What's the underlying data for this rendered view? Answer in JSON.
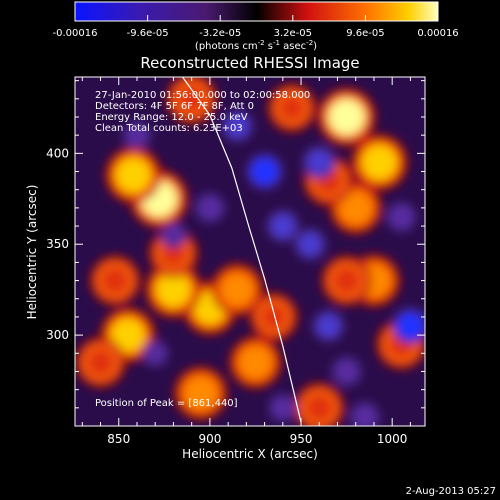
{
  "colorbar": {
    "tick_labels": [
      "-0.00016",
      "-9.6e-05",
      "-3.2e-05",
      "3.2e-05",
      "9.6e-05",
      "0.00016"
    ],
    "units_text": "(photons cm",
    "units_sup1": "-2",
    "units_s": " s",
    "units_sup2": "-1",
    "units_asec": " asec",
    "units_sup3": "-2",
    "units_close": ")",
    "range": [
      -0.00016,
      0.00016
    ]
  },
  "annotations": {
    "time": "27-Jan-2010 01:56:00.000 to 02:00:58.000",
    "detectors": "Detectors: 4F 5F 6F 7F 8F, Att 0",
    "energy": "Energy Range: 12.0 - 25.0 keV",
    "clean": "Clean     Total counts: 6.23E+03",
    "peak": "Position of Peak = [861,440]"
  },
  "footer_date": "2-Aug-2013 05:27",
  "chart_data": {
    "type": "heatmap",
    "title": "Reconstructed RHESSI Image",
    "xlabel": "Heliocentric X (arcsec)",
    "ylabel": "Heliocentric Y (arcsec)",
    "xlim": [
      826,
      1018
    ],
    "ylim": [
      250,
      442
    ],
    "xticks": [
      850,
      900,
      950,
      1000
    ],
    "yticks": [
      300,
      350,
      400
    ],
    "peak": [
      861,
      440
    ],
    "limb_curve": [
      [
        885,
        442
      ],
      [
        900,
        421
      ],
      [
        912,
        392
      ],
      [
        921,
        361
      ],
      [
        930,
        331
      ],
      [
        940,
        294
      ],
      [
        950,
        252
      ]
    ],
    "colorscale": [
      "#0a14ff",
      "#3a1ab0",
      "#4a1a70",
      "#000000",
      "#d01010",
      "#ff7000",
      "#ffd000",
      "#ffffc0"
    ],
    "hot_spots": [
      {
        "x": 872,
        "y": 375,
        "v": 1.0
      },
      {
        "x": 858,
        "y": 388,
        "v": 0.9
      },
      {
        "x": 975,
        "y": 420,
        "v": 1.0
      },
      {
        "x": 993,
        "y": 395,
        "v": 0.9
      },
      {
        "x": 980,
        "y": 370,
        "v": 0.7
      },
      {
        "x": 965,
        "y": 385,
        "v": 0.6
      },
      {
        "x": 900,
        "y": 315,
        "v": 0.8
      },
      {
        "x": 880,
        "y": 325,
        "v": 0.9
      },
      {
        "x": 915,
        "y": 325,
        "v": 0.7
      },
      {
        "x": 925,
        "y": 285,
        "v": 0.7
      },
      {
        "x": 895,
        "y": 268,
        "v": 0.75
      },
      {
        "x": 855,
        "y": 300,
        "v": 0.85
      },
      {
        "x": 840,
        "y": 285,
        "v": 0.6
      },
      {
        "x": 990,
        "y": 330,
        "v": 0.7
      },
      {
        "x": 1005,
        "y": 295,
        "v": 0.6
      },
      {
        "x": 960,
        "y": 260,
        "v": 0.6
      },
      {
        "x": 975,
        "y": 330,
        "v": 0.6
      },
      {
        "x": 880,
        "y": 345,
        "v": 0.55
      },
      {
        "x": 848,
        "y": 330,
        "v": 0.6
      },
      {
        "x": 935,
        "y": 310,
        "v": 0.5
      },
      {
        "x": 890,
        "y": 430,
        "v": 0.6
      },
      {
        "x": 945,
        "y": 425,
        "v": 0.5
      }
    ],
    "cold_spots": [
      {
        "x": 930,
        "y": 390,
        "v": -1.0
      },
      {
        "x": 915,
        "y": 415,
        "v": -0.7
      },
      {
        "x": 940,
        "y": 360,
        "v": -0.75
      },
      {
        "x": 955,
        "y": 350,
        "v": -0.7
      },
      {
        "x": 1005,
        "y": 365,
        "v": -0.6
      },
      {
        "x": 960,
        "y": 395,
        "v": -0.8
      },
      {
        "x": 1010,
        "y": 305,
        "v": -1.0
      },
      {
        "x": 900,
        "y": 370,
        "v": -0.6
      },
      {
        "x": 860,
        "y": 410,
        "v": -0.5
      },
      {
        "x": 965,
        "y": 305,
        "v": -0.7
      },
      {
        "x": 975,
        "y": 280,
        "v": -0.6
      },
      {
        "x": 870,
        "y": 290,
        "v": -0.4
      },
      {
        "x": 985,
        "y": 255,
        "v": -0.6
      },
      {
        "x": 940,
        "y": 260,
        "v": -0.5
      },
      {
        "x": 880,
        "y": 355,
        "v": -0.4
      }
    ]
  }
}
